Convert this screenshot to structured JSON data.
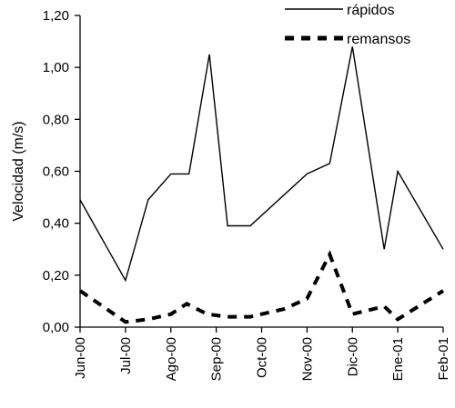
{
  "chart_data": {
    "type": "line",
    "title": "",
    "xlabel": "",
    "ylabel": "Velocidad (m/s)",
    "x_tick_labels": [
      "Jun-00",
      "Jul-00",
      "Ago-00",
      "Sep-00",
      "Oct-00",
      "Nov-00",
      "Dic-00",
      "Ene-01",
      "Feb-01"
    ],
    "x_range": [
      0,
      8
    ],
    "ylim": [
      0,
      1.2
    ],
    "y_tick_values": [
      0,
      0.2,
      0.4,
      0.6,
      0.8,
      1.0,
      1.2
    ],
    "y_tick_labels": [
      "0,00",
      "0,20",
      "0,40",
      "0,60",
      "0,80",
      "1,00",
      "1,20"
    ],
    "grid": false,
    "legend_position": "top-right",
    "series": [
      {
        "name": "rápidos",
        "style": "solid",
        "color": "#000000",
        "x": [
          0,
          1,
          1.5,
          2,
          2.4,
          2.85,
          3.25,
          3.75,
          5,
          5.5,
          6,
          6.7,
          7,
          8
        ],
        "values": [
          0.49,
          0.18,
          0.49,
          0.59,
          0.59,
          1.05,
          0.39,
          0.39,
          0.59,
          0.63,
          1.08,
          0.3,
          0.6,
          0.3
        ]
      },
      {
        "name": "remansos",
        "style": "dashed",
        "color": "#000000",
        "x": [
          0,
          1,
          1.5,
          2,
          2.35,
          2.8,
          3.25,
          3.75,
          4.5,
          5,
          5.5,
          6,
          6.7,
          7,
          8
        ],
        "values": [
          0.14,
          0.02,
          0.03,
          0.05,
          0.09,
          0.05,
          0.04,
          0.04,
          0.07,
          0.11,
          0.28,
          0.05,
          0.08,
          0.03,
          0.14
        ]
      }
    ]
  }
}
